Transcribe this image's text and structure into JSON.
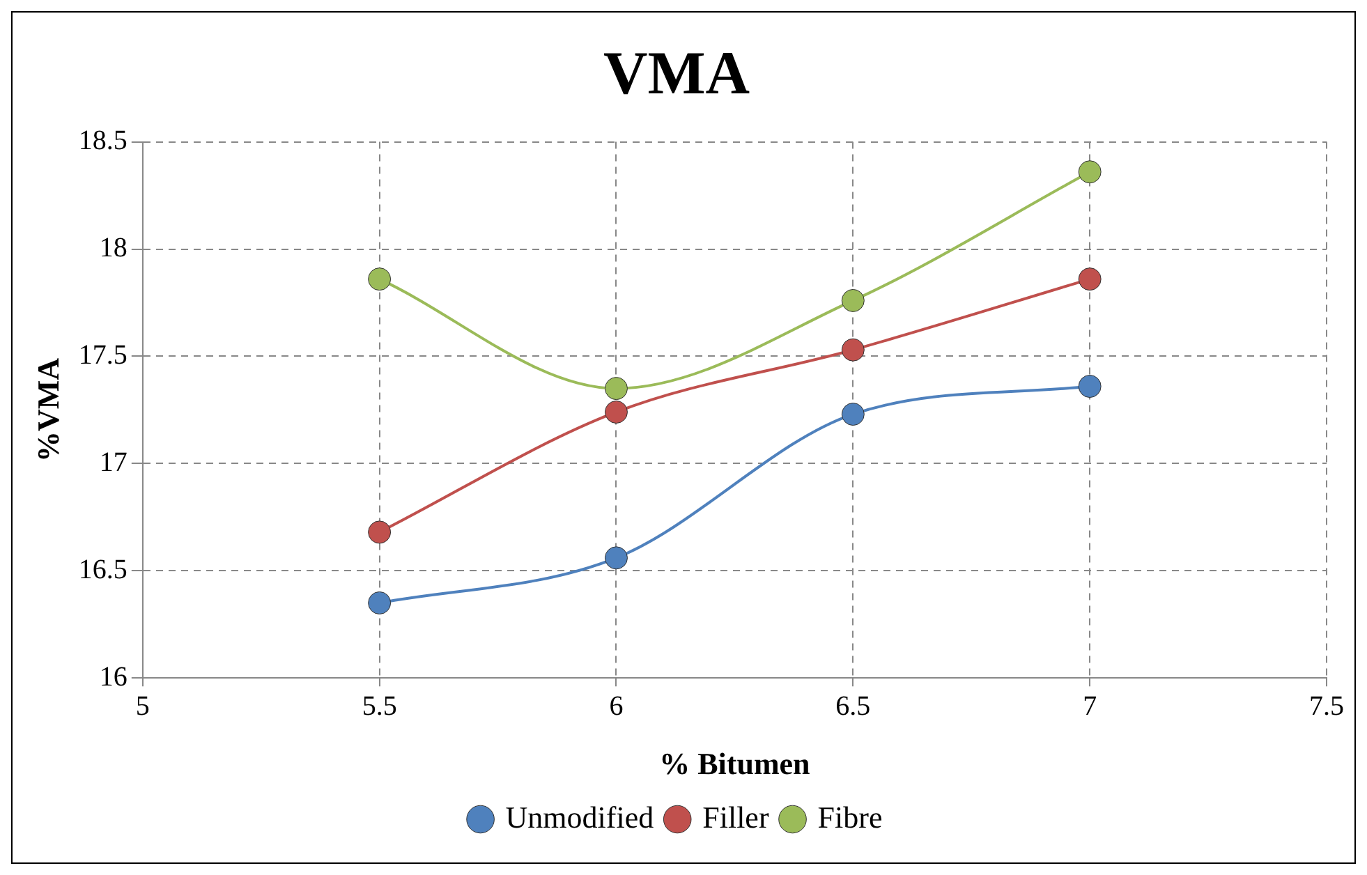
{
  "chart_data": {
    "type": "line",
    "title": "VMA",
    "xlabel": "% Bitumen",
    "ylabel": "%VMA",
    "x": [
      5.5,
      6,
      6.5,
      7
    ],
    "series": [
      {
        "name": "Unmodified",
        "color": "#4f81bd",
        "values": [
          16.35,
          16.56,
          17.23,
          17.36
        ]
      },
      {
        "name": "Filler",
        "color": "#c0504d",
        "values": [
          16.68,
          17.24,
          17.53,
          17.86
        ]
      },
      {
        "name": "Fibre",
        "color": "#9bbb59",
        "values": [
          17.86,
          17.35,
          17.76,
          18.36
        ]
      }
    ],
    "xlim": [
      5,
      7.5
    ],
    "xticks": [
      5,
      5.5,
      6,
      6.5,
      7,
      7.5
    ],
    "ylim": [
      16,
      18.5
    ],
    "yticks": [
      16,
      16.5,
      17,
      17.5,
      18,
      18.5
    ],
    "grid": true,
    "legend": "bottom",
    "marker": "circle",
    "line_style": "solid"
  }
}
